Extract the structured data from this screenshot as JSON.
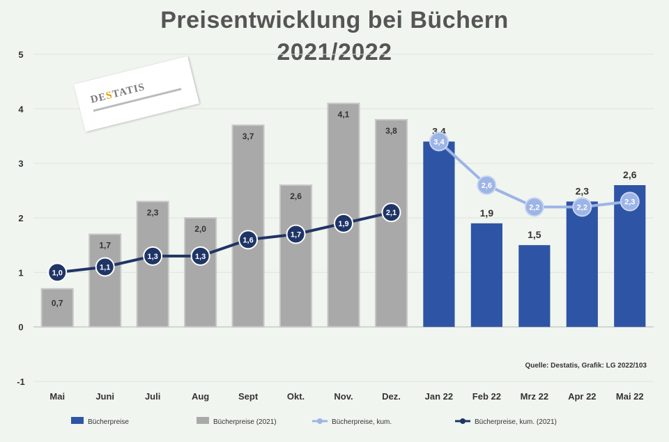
{
  "chart_data": {
    "type": "bar",
    "title": "Preisentwicklung bei Büchern",
    "subtitle": "2021/2022",
    "categories": [
      "Mai",
      "Juni",
      "Juli",
      "Aug",
      "Sept",
      "Okt.",
      "Nov.",
      "Dez.",
      "Jan 22",
      "Feb 22",
      "Mrz 22",
      "Apr 22",
      "Mai 22"
    ],
    "ylim": [
      -1,
      5
    ],
    "yticks": [
      "-1",
      "0",
      "1",
      "2",
      "3",
      "4",
      "5"
    ],
    "series": [
      {
        "name": "Bücherpreise",
        "kind": "bar",
        "color": "#2e54a5",
        "values": [
          null,
          null,
          null,
          null,
          null,
          null,
          null,
          null,
          3.4,
          1.9,
          1.5,
          2.3,
          2.6
        ],
        "labels": [
          "",
          "",
          "",
          "",
          "",
          "",
          "",
          "",
          "3,4",
          "1,9",
          "1,5",
          "2,3",
          "2,6"
        ]
      },
      {
        "name": "Bücherpreise (2021)",
        "kind": "bar",
        "color": "#a9a9a9",
        "values": [
          0.7,
          1.7,
          2.3,
          2.0,
          3.7,
          2.6,
          4.1,
          3.8,
          null,
          null,
          null,
          null,
          null
        ],
        "labels": [
          "0,7",
          "1,7",
          "2,3",
          "2,0",
          "3,7",
          "2,6",
          "4,1",
          "3,8",
          "",
          "",
          "",
          "",
          ""
        ]
      },
      {
        "name": "Bücherpreise, kum.",
        "kind": "line",
        "color": "#9db4e6",
        "values": [
          null,
          null,
          null,
          null,
          null,
          null,
          null,
          null,
          3.4,
          2.6,
          2.2,
          2.2,
          2.3
        ],
        "labels": [
          "",
          "",
          "",
          "",
          "",
          "",
          "",
          "",
          "3,4",
          "2,6",
          "2,2",
          "2,2",
          "2,3"
        ]
      },
      {
        "name": "Bücherpreise, kum. (2021)",
        "kind": "line",
        "color": "#1f3566",
        "values": [
          1.0,
          1.1,
          1.3,
          1.3,
          1.6,
          1.7,
          1.9,
          2.1,
          null,
          null,
          null,
          null,
          null
        ],
        "labels": [
          "1,0",
          "1,1",
          "1,3",
          "1,3",
          "1,6",
          "1,7",
          "1,9",
          "2,1",
          "",
          "",
          "",
          "",
          ""
        ]
      }
    ],
    "grid": true,
    "legend": "bottom",
    "source_note": "Quelle: Destatis, Grafik: LG 2022/103"
  },
  "logo": {
    "brand": "DESTATIS"
  }
}
